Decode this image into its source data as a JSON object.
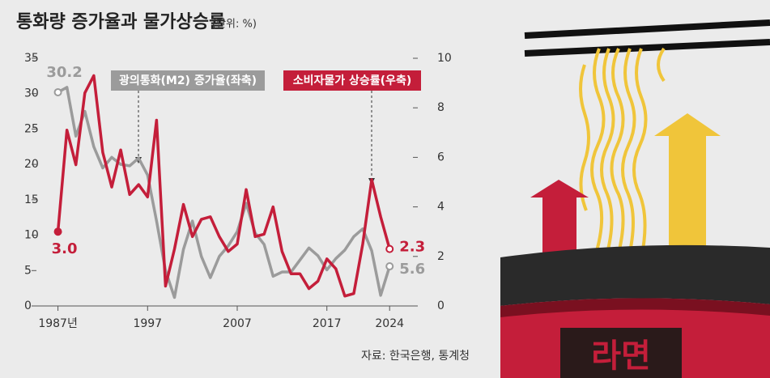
{
  "chart_data": {
    "type": "line",
    "title": "통화량 증가율과 물가상승률",
    "subtitle": "(단위: %)",
    "source": "자료: 한국은행, 통계청",
    "illustration_text": "라면",
    "x": [
      1987,
      1988,
      1989,
      1990,
      1991,
      1992,
      1993,
      1994,
      1995,
      1996,
      1997,
      1998,
      1999,
      2000,
      2001,
      2002,
      2003,
      2004,
      2005,
      2006,
      2007,
      2008,
      2009,
      2010,
      2011,
      2012,
      2013,
      2014,
      2015,
      2016,
      2017,
      2018,
      2019,
      2020,
      2021,
      2022,
      2023,
      2024
    ],
    "xlim": [
      1984.6,
      2026.6
    ],
    "xticks": [
      {
        "value": 1987,
        "label": "1987년"
      },
      1997,
      2007,
      2017,
      2024
    ],
    "ylim": [
      0,
      35
    ],
    "yticks": [
      0,
      5,
      10,
      15,
      20,
      25,
      30,
      35
    ],
    "y2lim": [
      0,
      10
    ],
    "y2ticks": [
      0,
      2,
      4,
      6,
      8,
      10
    ],
    "series": [
      {
        "name": "광의통화(M2) 증가율(좌축)",
        "color": "#9b9b9b",
        "axis": "y",
        "values": [
          30.2,
          30.9,
          24.0,
          27.5,
          22.5,
          19.5,
          21.0,
          20.0,
          19.8,
          20.9,
          18.5,
          12.0,
          5.0,
          1.2,
          8.0,
          12.0,
          7.0,
          4.0,
          7.0,
          8.5,
          10.5,
          14.5,
          10.3,
          8.7,
          4.2,
          4.8,
          4.8,
          6.5,
          8.2,
          7.1,
          5.1,
          6.7,
          7.9,
          9.8,
          10.9,
          7.8,
          1.5,
          5.6
        ],
        "value_labels": [
          "30.2",
          null,
          null,
          null,
          null,
          null,
          null,
          null,
          null,
          null,
          null,
          null,
          null,
          null,
          null,
          null,
          null,
          null,
          null,
          null,
          null,
          null,
          null,
          null,
          null,
          null,
          null,
          null,
          null,
          null,
          null,
          null,
          null,
          null,
          null,
          null,
          null,
          "5.6"
        ]
      },
      {
        "name": "소비자물가 상승률(우축)",
        "color": "#c41e3a",
        "axis": "y2",
        "values": [
          3.0,
          7.1,
          5.7,
          8.6,
          9.3,
          6.2,
          4.8,
          6.3,
          4.5,
          4.9,
          4.4,
          7.5,
          0.8,
          2.3,
          4.1,
          2.8,
          3.5,
          3.6,
          2.8,
          2.2,
          2.5,
          4.7,
          2.8,
          2.9,
          4.0,
          2.2,
          1.3,
          1.3,
          0.7,
          1.0,
          1.9,
          1.5,
          0.4,
          0.5,
          2.5,
          5.1,
          3.6,
          2.3
        ],
        "value_labels": [
          "3.0",
          null,
          null,
          null,
          null,
          null,
          null,
          null,
          null,
          null,
          null,
          null,
          null,
          null,
          null,
          null,
          null,
          null,
          null,
          null,
          null,
          null,
          null,
          null,
          null,
          null,
          null,
          null,
          null,
          null,
          null,
          null,
          null,
          null,
          null,
          null,
          null,
          "2.3"
        ]
      }
    ]
  }
}
